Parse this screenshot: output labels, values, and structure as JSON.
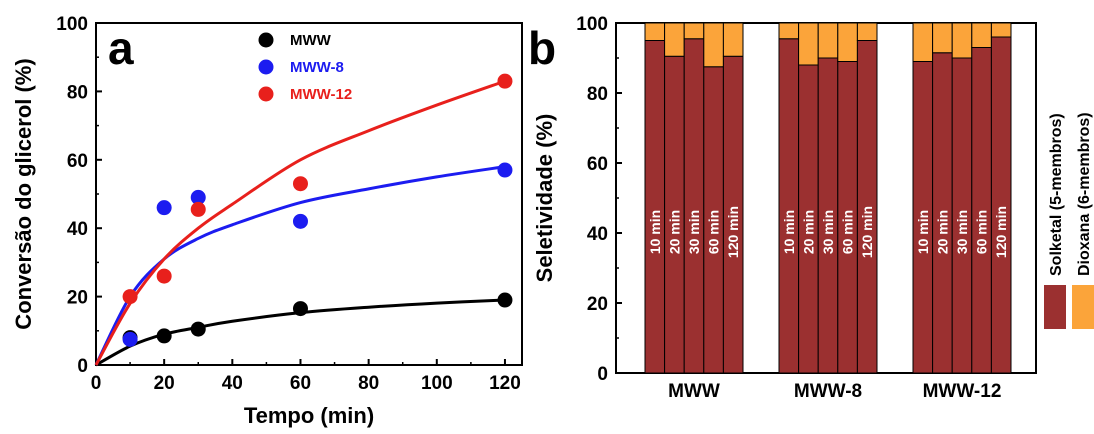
{
  "chart_data": [
    {
      "panel": "a",
      "type": "scatter",
      "xlabel": "Tempo (min)",
      "ylabel": "Conversão do glicerol (%)",
      "xlim": [
        0,
        125
      ],
      "ylim": [
        0,
        100
      ],
      "xticks": [
        "0",
        "20",
        "40",
        "60",
        "80",
        "100",
        "120"
      ],
      "yticks": [
        "0",
        "20",
        "40",
        "60",
        "80",
        "100"
      ],
      "legend_position": "top-center",
      "series": [
        {
          "name": "MWW",
          "color": "#000000",
          "points": [
            [
              10,
              8
            ],
            [
              20,
              8.5
            ],
            [
              30,
              10.5
            ],
            [
              60,
              16.5
            ],
            [
              120,
              19
            ]
          ],
          "curve": [
            [
              0,
              0
            ],
            [
              10,
              5.5
            ],
            [
              20,
              9
            ],
            [
              30,
              11
            ],
            [
              40,
              12.8
            ],
            [
              60,
              15.3
            ],
            [
              80,
              16.9
            ],
            [
              100,
              18.1
            ],
            [
              120,
              19
            ]
          ]
        },
        {
          "name": "MWW-8",
          "color": "#1c1cf0",
          "points": [
            [
              10,
              7.5
            ],
            [
              20,
              46
            ],
            [
              30,
              49
            ],
            [
              60,
              42
            ],
            [
              120,
              57
            ]
          ],
          "curve": [
            [
              0,
              0
            ],
            [
              10,
              20
            ],
            [
              20,
              31
            ],
            [
              30,
              37
            ],
            [
              40,
              41
            ],
            [
              60,
              47.5
            ],
            [
              80,
              51.5
            ],
            [
              100,
              55
            ],
            [
              120,
              58
            ]
          ]
        },
        {
          "name": "MWW-12",
          "color": "#e8201c",
          "points": [
            [
              10,
              20
            ],
            [
              20,
              26
            ],
            [
              30,
              45.5
            ],
            [
              60,
              53
            ],
            [
              120,
              83
            ]
          ],
          "curve": [
            [
              0,
              0
            ],
            [
              10,
              18
            ],
            [
              20,
              31
            ],
            [
              30,
              40
            ],
            [
              40,
              47
            ],
            [
              60,
              60
            ],
            [
              80,
              68.5
            ],
            [
              100,
              76
            ],
            [
              120,
              83
            ]
          ]
        }
      ]
    },
    {
      "panel": "b",
      "type": "bar",
      "stacked": true,
      "ylabel": "Seletividade (%)",
      "ylim": [
        0,
        100
      ],
      "yticks": [
        "0",
        "20",
        "40",
        "60",
        "80",
        "100"
      ],
      "categories": [
        "MWW",
        "MWW-8",
        "MWW-12"
      ],
      "bar_labels": [
        "10 min",
        "20 min",
        "30 min",
        "60 min",
        "120 min"
      ],
      "series": [
        {
          "name": "Solketal (5-membros)",
          "color": "#9b3030",
          "values": [
            [
              95,
              90.5,
              95.5,
              87.5,
              90.5
            ],
            [
              95.5,
              88,
              90,
              89,
              95
            ],
            [
              89,
              91.5,
              90,
              93,
              96
            ]
          ]
        },
        {
          "name": "Dioxana (6-membros)",
          "color": "#fba43a",
          "values": [
            [
              5,
              9.5,
              4.5,
              12.5,
              9.5
            ],
            [
              4.5,
              12,
              10,
              11,
              5
            ],
            [
              11,
              8.5,
              10,
              7,
              4
            ]
          ]
        }
      ]
    }
  ]
}
